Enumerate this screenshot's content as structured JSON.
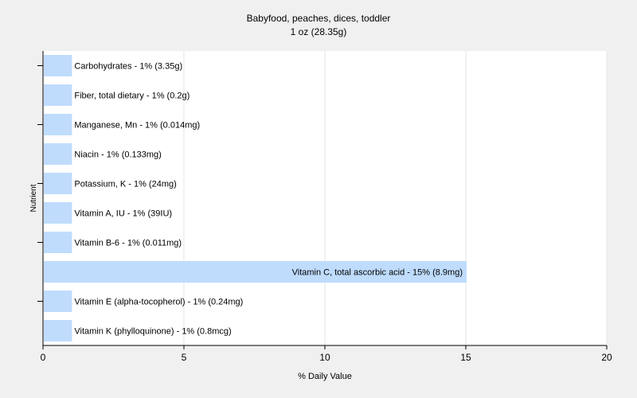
{
  "chart_data": {
    "type": "bar",
    "orientation": "horizontal",
    "title": "Babyfood, peaches, dices, toddler",
    "subtitle": "1 oz (28.35g)",
    "xlabel": "% Daily Value",
    "ylabel": "Nutrient",
    "xlim": [
      0,
      20
    ],
    "xticks": [
      0,
      5,
      10,
      15,
      20
    ],
    "grid": true,
    "legend": "none",
    "bar_color": "#bfdcfd",
    "categories": [
      "Carbohydrates - 1% (3.35g)",
      "Fiber, total dietary - 1% (0.2g)",
      "Manganese, Mn - 1% (0.014mg)",
      "Niacin - 1% (0.133mg)",
      "Potassium, K - 1% (24mg)",
      "Vitamin A, IU - 1% (39IU)",
      "Vitamin B-6 - 1% (0.011mg)",
      "Vitamin C, total ascorbic acid - 15% (8.9mg)",
      "Vitamin E (alpha-tocopherol) - 1% (0.24mg)",
      "Vitamin K (phylloquinone) - 1% (0.8mcg)"
    ],
    "values": [
      1,
      1,
      1,
      1,
      1,
      1,
      1,
      15,
      1,
      1
    ]
  }
}
